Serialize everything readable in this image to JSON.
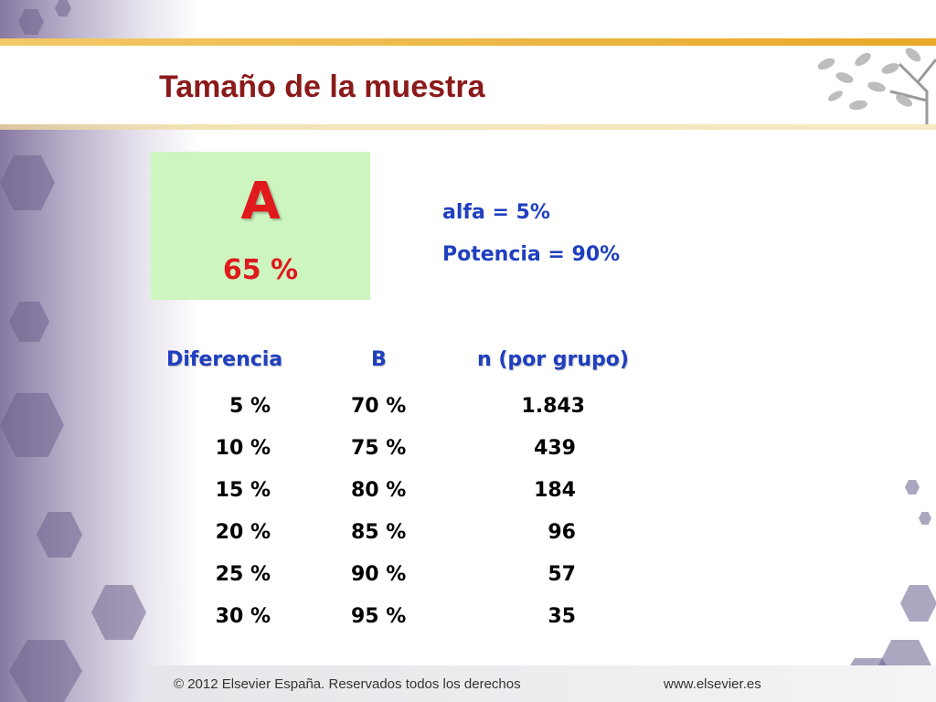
{
  "slide": {
    "title": "Tamaño de la muestra",
    "box": {
      "label": "A",
      "value": "65 %"
    },
    "params": [
      "alfa = 5%",
      "Potencia = 90%"
    ],
    "table": {
      "headers": [
        "Diferencia",
        "B",
        "n (por grupo)"
      ],
      "rows": [
        [
          "5 %",
          "70 %",
          "1.843"
        ],
        [
          "10 %",
          "75 %",
          "439"
        ],
        [
          "15 %",
          "80 %",
          "184"
        ],
        [
          "20 %",
          "85 %",
          "96"
        ],
        [
          "25 %",
          "90 %",
          "57"
        ],
        [
          "30 %",
          "95 %",
          "35"
        ]
      ]
    }
  },
  "footer": {
    "copyright": "© 2012 Elsevier España. Reservados todos los derechos",
    "url": "www.elsevier.es"
  },
  "colors": {
    "title": "#8b1a1a",
    "accent_red": "#e0191d",
    "blue": "#1f3fbf",
    "box_green": "#ccf5c0"
  },
  "icons": {
    "logo": "tree-logo-icon"
  }
}
